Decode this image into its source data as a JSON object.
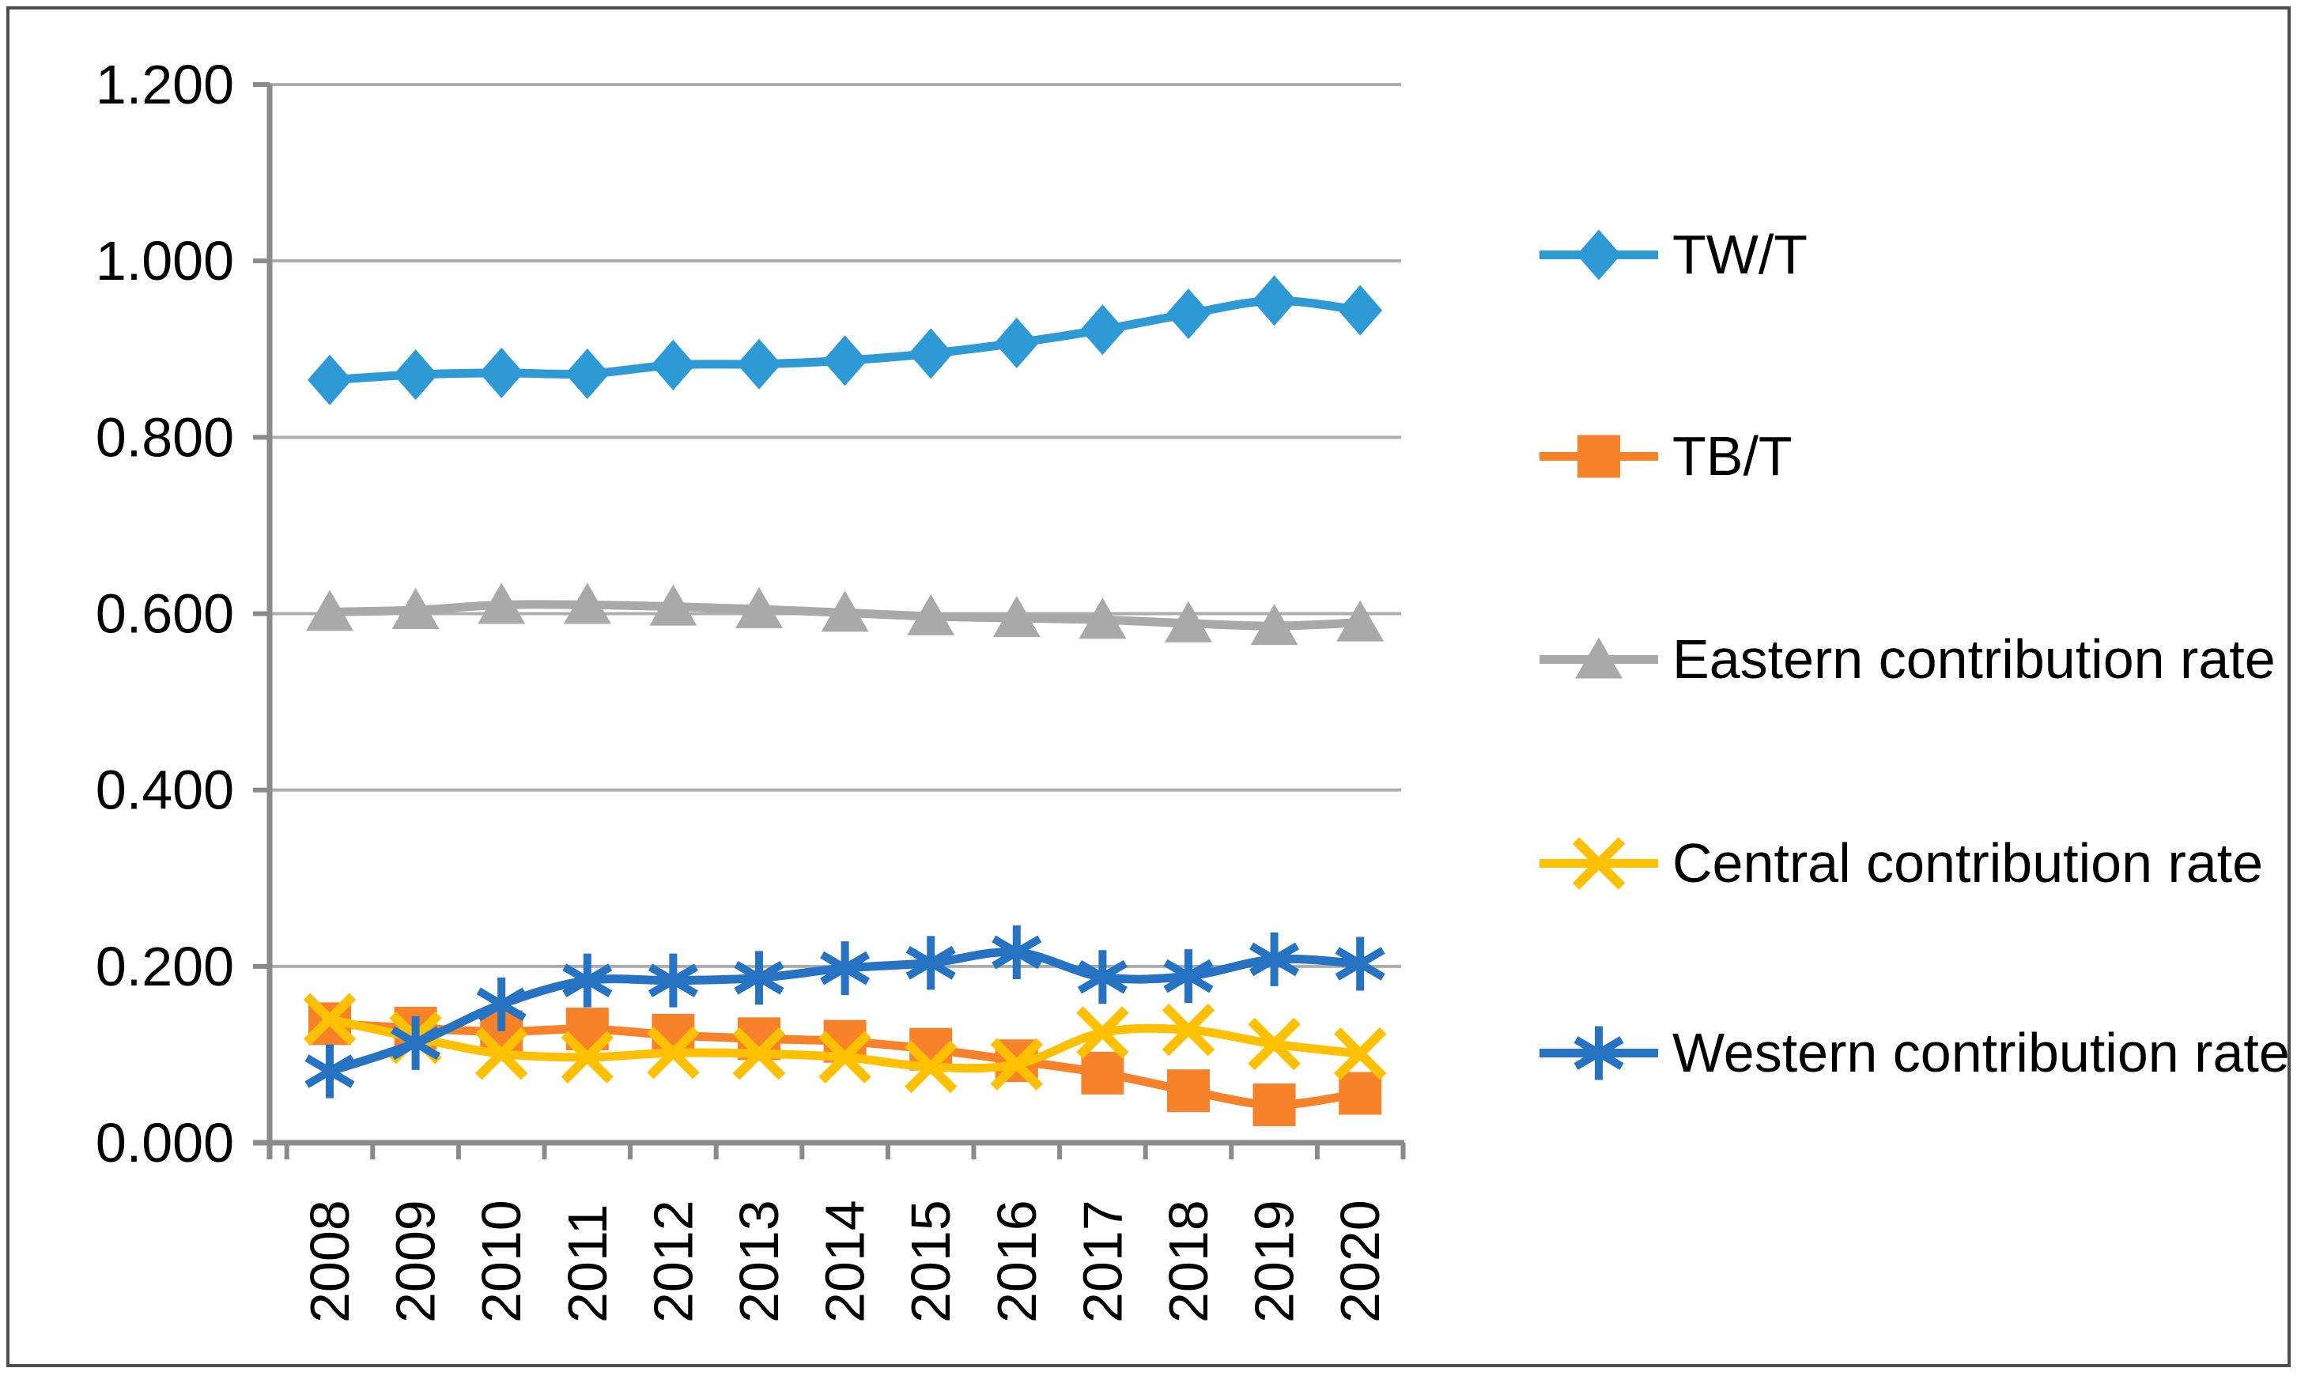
{
  "chart": {
    "background": "#ffffff",
    "frame_border_color": "#4e4e4e",
    "axis_color": "#8a8a8a",
    "gridline_color": "#adadad",
    "label_color": "#000000"
  },
  "chart_data": {
    "type": "line",
    "title": "",
    "xlabel": "",
    "ylabel": "",
    "grid": true,
    "legend_position": "right",
    "smoothed_lines": true,
    "categories": [
      "2008",
      "2009",
      "2010",
      "2011",
      "2012",
      "2013",
      "2014",
      "2015",
      "2016",
      "2017",
      "2018",
      "2019",
      "2020"
    ],
    "y_axis": {
      "min": 0,
      "max": 1.2,
      "step": 0.2,
      "tick_labels": [
        "0.000",
        "0.200",
        "0.400",
        "0.600",
        "0.800",
        "1.000",
        "1.200"
      ]
    },
    "series": [
      {
        "id": "twt",
        "name": "TW/T",
        "color": "#2D9AD5",
        "marker": "diamond",
        "values": [
          0.865,
          0.871,
          0.873,
          0.872,
          0.882,
          0.883,
          0.887,
          0.895,
          0.907,
          0.922,
          0.94,
          0.955,
          0.944
        ]
      },
      {
        "id": "tbt",
        "name": "TB/T",
        "color": "#F8822A",
        "marker": "square",
        "values": [
          0.135,
          0.13,
          0.126,
          0.129,
          0.122,
          0.118,
          0.115,
          0.106,
          0.093,
          0.079,
          0.059,
          0.043,
          0.056
        ]
      },
      {
        "id": "eastern-contribution-rate",
        "name": "Eastern contribution rate",
        "color": "#A9A9A9",
        "marker": "triangle",
        "values": [
          0.602,
          0.604,
          0.61,
          0.61,
          0.608,
          0.605,
          0.601,
          0.597,
          0.595,
          0.593,
          0.589,
          0.586,
          0.59
        ]
      },
      {
        "id": "central-contribution-rate",
        "name": "Central contribution rate",
        "color": "#FFC000",
        "marker": "x",
        "values": [
          0.14,
          0.119,
          0.101,
          0.097,
          0.102,
          0.101,
          0.097,
          0.086,
          0.089,
          0.125,
          0.128,
          0.112,
          0.101
        ]
      },
      {
        "id": "western-contribution-rate",
        "name": "Western contribution rate",
        "color": "#2573C2",
        "marker": "asterisk",
        "values": [
          0.081,
          0.113,
          0.157,
          0.184,
          0.184,
          0.187,
          0.198,
          0.204,
          0.216,
          0.188,
          0.189,
          0.208,
          0.203
        ]
      }
    ]
  }
}
